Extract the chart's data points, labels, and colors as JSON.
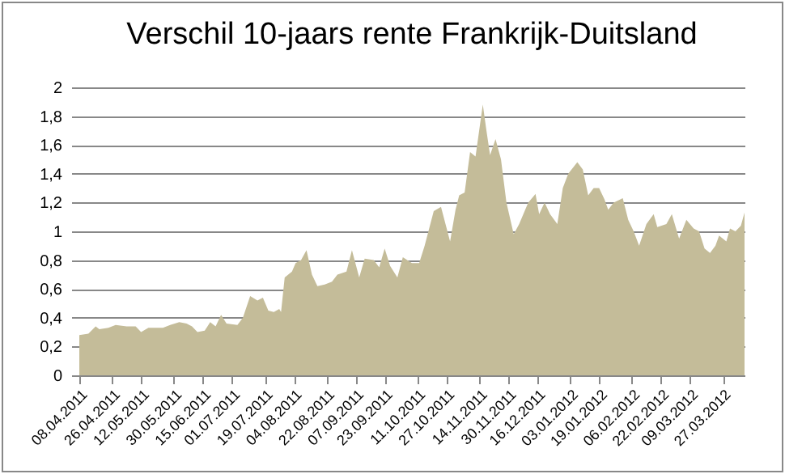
{
  "chart_data": {
    "type": "area",
    "title": "Verschil 10-jaars rente Frankrijk-Duitsland",
    "color": "#c4bc99",
    "grid": "y",
    "x": [
      "2011-04-08",
      "2011-04-13",
      "2011-04-17",
      "2011-04-19",
      "2011-04-24",
      "2011-04-28",
      "2011-05-04",
      "2011-05-09",
      "2011-05-12",
      "2011-05-16",
      "2011-05-24",
      "2011-05-28",
      "2011-06-02",
      "2011-06-06",
      "2011-06-09",
      "2011-06-12",
      "2011-06-16",
      "2011-06-19",
      "2011-06-22",
      "2011-06-25",
      "2011-06-28",
      "2011-07-04",
      "2011-07-07",
      "2011-07-11",
      "2011-07-15",
      "2011-07-18",
      "2011-07-21",
      "2011-07-24",
      "2011-07-27",
      "2011-07-28",
      "2011-07-30",
      "2011-08-03",
      "2011-08-05",
      "2011-08-08",
      "2011-08-11",
      "2011-08-14",
      "2011-08-17",
      "2011-08-21",
      "2011-08-25",
      "2011-08-28",
      "2011-09-02",
      "2011-09-05",
      "2011-09-09",
      "2011-09-12",
      "2011-09-17",
      "2011-09-20",
      "2011-09-23",
      "2011-09-26",
      "2011-09-30",
      "2011-10-03",
      "2011-10-08",
      "2011-10-12",
      "2011-10-15",
      "2011-10-20",
      "2011-10-24",
      "2011-10-29",
      "2011-11-01",
      "2011-11-03",
      "2011-11-06",
      "2011-11-09",
      "2011-11-12",
      "2011-11-16",
      "2011-11-18",
      "2011-11-20",
      "2011-11-23",
      "2011-11-26",
      "2011-11-29",
      "2011-12-03",
      "2011-12-06",
      "2011-12-11",
      "2011-12-15",
      "2011-12-17",
      "2011-12-20",
      "2011-12-23",
      "2011-12-27",
      "2011-12-30",
      "2012-01-02",
      "2012-01-07",
      "2012-01-10",
      "2012-01-13",
      "2012-01-16",
      "2012-01-19",
      "2012-01-22",
      "2012-01-24",
      "2012-01-27",
      "2012-02-01",
      "2012-02-04",
      "2012-02-07",
      "2012-02-10",
      "2012-02-14",
      "2012-02-18",
      "2012-02-20",
      "2012-02-25",
      "2012-02-28",
      "2012-03-03",
      "2012-03-07",
      "2012-03-11",
      "2012-03-14",
      "2012-03-17",
      "2012-03-20",
      "2012-03-23",
      "2012-03-25",
      "2012-03-29",
      "2012-03-31",
      "2012-04-03",
      "2012-04-06",
      "2012-04-08"
    ],
    "values": [
      0.28,
      0.29,
      0.34,
      0.32,
      0.33,
      0.35,
      0.34,
      0.34,
      0.3,
      0.33,
      0.33,
      0.35,
      0.37,
      0.36,
      0.34,
      0.3,
      0.31,
      0.37,
      0.34,
      0.42,
      0.36,
      0.35,
      0.4,
      0.55,
      0.52,
      0.54,
      0.45,
      0.44,
      0.46,
      0.44,
      0.68,
      0.72,
      0.78,
      0.8,
      0.87,
      0.7,
      0.62,
      0.63,
      0.65,
      0.7,
      0.72,
      0.87,
      0.68,
      0.81,
      0.8,
      0.75,
      0.88,
      0.76,
      0.68,
      0.82,
      0.78,
      0.78,
      0.9,
      1.14,
      1.17,
      0.93,
      1.15,
      1.25,
      1.27,
      1.55,
      1.52,
      1.88,
      1.7,
      1.53,
      1.64,
      1.5,
      1.2,
      0.98,
      1.05,
      1.2,
      1.26,
      1.12,
      1.2,
      1.12,
      1.05,
      1.3,
      1.4,
      1.48,
      1.43,
      1.25,
      1.3,
      1.3,
      1.22,
      1.15,
      1.2,
      1.23,
      1.08,
      1.0,
      0.9,
      1.05,
      1.12,
      1.03,
      1.05,
      1.12,
      0.95,
      1.08,
      1.02,
      1.0,
      0.88,
      0.85,
      0.9,
      0.97,
      0.93,
      1.02,
      1.0,
      1.04,
      1.13
    ],
    "xlim": [
      "2011-04-08",
      "2012-04-08"
    ],
    "xticks": [
      {
        "value": "2011-04-08",
        "label": "08.04.2011"
      },
      {
        "value": "2011-04-26",
        "label": "26.04.2011"
      },
      {
        "value": "2011-05-12",
        "label": "12.05.2011"
      },
      {
        "value": "2011-05-30",
        "label": "30.05.2011"
      },
      {
        "value": "2011-06-15",
        "label": "15.06.2011"
      },
      {
        "value": "2011-07-01",
        "label": "01.07.2011"
      },
      {
        "value": "2011-07-19",
        "label": "19.07.2011"
      },
      {
        "value": "2011-08-04",
        "label": "04.08.2011"
      },
      {
        "value": "2011-08-22",
        "label": "22.08.2011"
      },
      {
        "value": "2011-09-07",
        "label": "07.09.2011"
      },
      {
        "value": "2011-09-23",
        "label": "23.09.2011"
      },
      {
        "value": "2011-10-11",
        "label": "11.10.2011"
      },
      {
        "value": "2011-10-27",
        "label": "27.10.2011"
      },
      {
        "value": "2011-11-14",
        "label": "14.11.2011"
      },
      {
        "value": "2011-11-30",
        "label": "30.11.2011"
      },
      {
        "value": "2011-12-16",
        "label": "16.12.2011"
      },
      {
        "value": "2012-01-03",
        "label": "03.01.2012"
      },
      {
        "value": "2012-01-19",
        "label": "19.01.2012"
      },
      {
        "value": "2012-02-06",
        "label": "06.02.2012"
      },
      {
        "value": "2012-02-22",
        "label": "22.02.2012"
      },
      {
        "value": "2012-03-09",
        "label": "09.03.2012"
      },
      {
        "value": "2012-03-27",
        "label": "27.03.2012"
      }
    ],
    "ylim": [
      0,
      2
    ],
    "yticks": [
      0,
      {
        "value": 0.2,
        "label": "0,2"
      },
      {
        "value": 0.4,
        "label": "0,4"
      },
      {
        "value": 0.6,
        "label": "0,6"
      },
      {
        "value": 0.8,
        "label": "0,8"
      },
      1,
      {
        "value": 1.2,
        "label": "1,2"
      },
      {
        "value": 1.4,
        "label": "1,4"
      },
      {
        "value": 1.6,
        "label": "1,6"
      },
      {
        "value": 1.8,
        "label": "1,8"
      },
      2
    ]
  }
}
